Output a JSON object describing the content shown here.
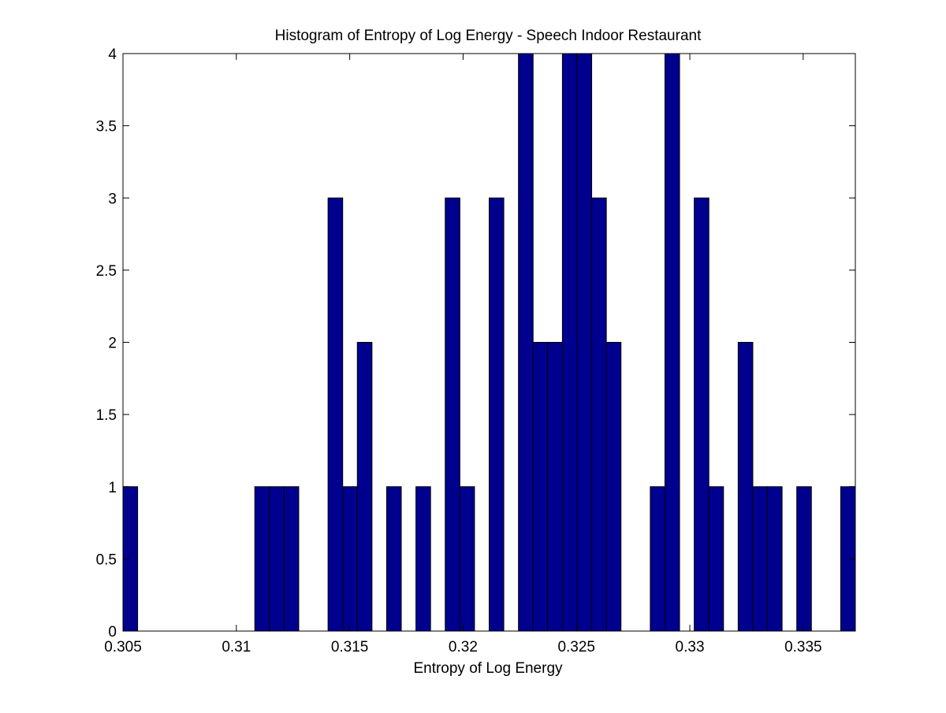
{
  "chart_data": {
    "type": "bar",
    "title": "Histogram of Entropy of Log Energy - Speech Indoor Restaurant",
    "xlabel": "Entropy of Log Energy",
    "ylabel": "",
    "xlim": [
      0.305,
      0.3373
    ],
    "ylim": [
      0,
      4
    ],
    "xticks": [
      0.305,
      0.31,
      0.315,
      0.32,
      0.325,
      0.33,
      0.335
    ],
    "xtick_labels": [
      "0.305",
      "0.31",
      "0.315",
      "0.32",
      "0.325",
      "0.33",
      "0.335"
    ],
    "yticks": [
      0,
      0.5,
      1,
      1.5,
      2,
      2.5,
      3,
      3.5,
      4
    ],
    "ytick_labels": [
      "0",
      "0.5",
      "1",
      "1.5",
      "2",
      "2.5",
      "3",
      "3.5",
      "4"
    ],
    "bin_start": 0.305,
    "bin_width": 0.000646,
    "values": [
      1,
      0,
      0,
      0,
      0,
      0,
      0,
      0,
      0,
      1,
      1,
      1,
      0,
      0,
      3,
      1,
      2,
      0,
      1,
      0,
      1,
      0,
      3,
      1,
      0,
      3,
      0,
      4,
      2,
      2,
      4,
      4,
      3,
      2,
      0,
      0,
      1,
      4,
      0,
      3,
      1,
      0,
      2,
      1,
      1,
      0,
      1,
      0,
      0,
      1
    ],
    "bar_color": "#00008F",
    "edge_color": "#000000",
    "grid": false
  }
}
